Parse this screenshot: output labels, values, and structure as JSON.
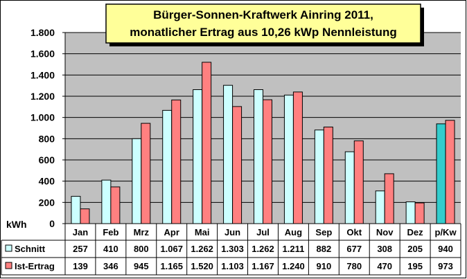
{
  "chart_data": {
    "type": "bar",
    "title_line1": "Bürger-Sonnen-Kraftwerk Ainring 2011,",
    "title_line2": "monatlicher Ertrag aus  10,26 kWp Nennleistung",
    "ylabel": "kWh",
    "ylim": [
      0,
      1800
    ],
    "yticks": [
      {
        "value": 0,
        "label": "0"
      },
      {
        "value": 200,
        "label": "200"
      },
      {
        "value": 400,
        "label": "400"
      },
      {
        "value": 600,
        "label": "600"
      },
      {
        "value": 800,
        "label": "800"
      },
      {
        "value": 1000,
        "label": "1.000"
      },
      {
        "value": 1200,
        "label": "1.200"
      },
      {
        "value": 1400,
        "label": "1.400"
      },
      {
        "value": 1600,
        "label": "1.600"
      },
      {
        "value": 1800,
        "label": "1.800"
      }
    ],
    "grid": true,
    "categories": [
      "Jan",
      "Feb",
      "Mrz",
      "Apr",
      "Mai",
      "Jun",
      "Jul",
      "Aug",
      "Sep",
      "Okt",
      "Nov",
      "Dez",
      "p/Kw"
    ],
    "series": [
      {
        "name": "Schnitt",
        "color": "#ccffff",
        "highlight_color": "#33cccc",
        "values": [
          257,
          410,
          800,
          1067,
          1262,
          1303,
          1262,
          1211,
          882,
          677,
          308,
          205,
          940
        ],
        "labels": [
          "257",
          "410",
          "800",
          "1.067",
          "1.262",
          "1.303",
          "1.262",
          "1.211",
          "882",
          "677",
          "308",
          "205",
          "940"
        ]
      },
      {
        "name": "Ist-Ertrag",
        "color": "#ff8080",
        "values": [
          139,
          346,
          945,
          1165,
          1520,
          1103,
          1167,
          1240,
          910,
          780,
          470,
          195,
          973
        ],
        "labels": [
          "139",
          "346",
          "945",
          "1.165",
          "1.520",
          "1.103",
          "1.167",
          "1.240",
          "910",
          "780",
          "470",
          "195",
          "973"
        ]
      }
    ],
    "colors": {
      "plot_background": "#c0c0c0",
      "title_background": "#ffff99",
      "title_shadow": "#000000"
    }
  }
}
